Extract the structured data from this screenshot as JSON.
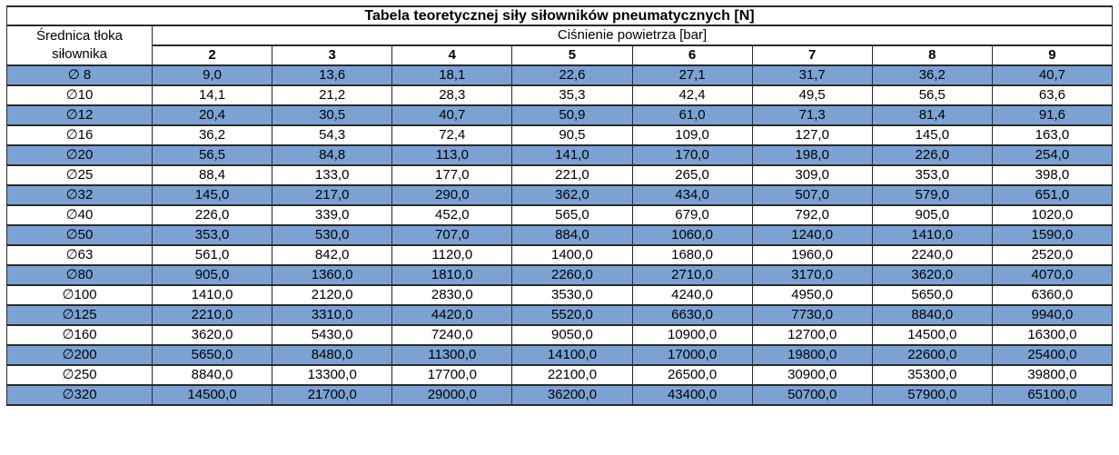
{
  "table": {
    "title": "Tabela teoretycznej siły siłowników pneumatycznych [N]",
    "row_header_line1": "Średnica tłoka",
    "row_header_line2": "siłownika",
    "col_group_header": "Ciśnienie powietrza [bar]",
    "pressures": [
      "2",
      "3",
      "4",
      "5",
      "6",
      "7",
      "8",
      "9"
    ],
    "rows": [
      {
        "diameter": "∅ 8",
        "values": [
          "9,0",
          "13,6",
          "18,1",
          "22,6",
          "27,1",
          "31,7",
          "36,2",
          "40,7"
        ]
      },
      {
        "diameter": "∅10",
        "values": [
          "14,1",
          "21,2",
          "28,3",
          "35,3",
          "42,4",
          "49,5",
          "56,5",
          "63,6"
        ]
      },
      {
        "diameter": "∅12",
        "values": [
          "20,4",
          "30,5",
          "40,7",
          "50,9",
          "61,0",
          "71,3",
          "81,4",
          "91,6"
        ]
      },
      {
        "diameter": "∅16",
        "values": [
          "36,2",
          "54,3",
          "72,4",
          "90,5",
          "109,0",
          "127,0",
          "145,0",
          "163,0"
        ]
      },
      {
        "diameter": "∅20",
        "values": [
          "56,5",
          "84,8",
          "113,0",
          "141,0",
          "170,0",
          "198,0",
          "226,0",
          "254,0"
        ]
      },
      {
        "diameter": "∅25",
        "values": [
          "88,4",
          "133,0",
          "177,0",
          "221,0",
          "265,0",
          "309,0",
          "353,0",
          "398,0"
        ]
      },
      {
        "diameter": "∅32",
        "values": [
          "145,0",
          "217,0",
          "290,0",
          "362,0",
          "434,0",
          "507,0",
          "579,0",
          "651,0"
        ]
      },
      {
        "diameter": "∅40",
        "values": [
          "226,0",
          "339,0",
          "452,0",
          "565,0",
          "679,0",
          "792,0",
          "905,0",
          "1020,0"
        ]
      },
      {
        "diameter": "∅50",
        "values": [
          "353,0",
          "530,0",
          "707,0",
          "884,0",
          "1060,0",
          "1240,0",
          "1410,0",
          "1590,0"
        ]
      },
      {
        "diameter": "∅63",
        "values": [
          "561,0",
          "842,0",
          "1120,0",
          "1400,0",
          "1680,0",
          "1960,0",
          "2240,0",
          "2520,0"
        ]
      },
      {
        "diameter": "∅80",
        "values": [
          "905,0",
          "1360,0",
          "1810,0",
          "2260,0",
          "2710,0",
          "3170,0",
          "3620,0",
          "4070,0"
        ]
      },
      {
        "diameter": "∅100",
        "values": [
          "1410,0",
          "2120,0",
          "2830,0",
          "3530,0",
          "4240,0",
          "4950,0",
          "5650,0",
          "6360,0"
        ]
      },
      {
        "diameter": "∅125",
        "values": [
          "2210,0",
          "3310,0",
          "4420,0",
          "5520,0",
          "6630,0",
          "7730,0",
          "8840,0",
          "9940,0"
        ]
      },
      {
        "diameter": "∅160",
        "values": [
          "3620,0",
          "5430,0",
          "7240,0",
          "9050,0",
          "10900,0",
          "12700,0",
          "14500,0",
          "16300,0"
        ]
      },
      {
        "diameter": "∅200",
        "values": [
          "5650,0",
          "8480,0",
          "11300,0",
          "14100,0",
          "17000,0",
          "19800,0",
          "22600,0",
          "25400,0"
        ]
      },
      {
        "diameter": "∅250",
        "values": [
          "8840,0",
          "13300,0",
          "17700,0",
          "22100,0",
          "26500,0",
          "30900,0",
          "35300,0",
          "39800,0"
        ]
      },
      {
        "diameter": "∅320",
        "values": [
          "14500,0",
          "21700,0",
          "29000,0",
          "36200,0",
          "43400,0",
          "50700,0",
          "57900,0",
          "65100,0"
        ]
      }
    ]
  },
  "colors": {
    "row_highlight": "#7CA2D4",
    "border": "#2B2B2B",
    "background": "#FFFFFF",
    "text": "#000000"
  },
  "chart_data": {
    "type": "table",
    "title": "Tabela teoretycznej siły siłowników pneumatycznych [N]",
    "xlabel": "Ciśnienie powietrza [bar]",
    "ylabel": "Średnica tłoka siłownika",
    "x": [
      2,
      3,
      4,
      5,
      6,
      7,
      8,
      9
    ],
    "series": [
      {
        "name": "∅ 8",
        "values": [
          9.0,
          13.6,
          18.1,
          22.6,
          27.1,
          31.7,
          36.2,
          40.7
        ]
      },
      {
        "name": "∅10",
        "values": [
          14.1,
          21.2,
          28.3,
          35.3,
          42.4,
          49.5,
          56.5,
          63.6
        ]
      },
      {
        "name": "∅12",
        "values": [
          20.4,
          30.5,
          40.7,
          50.9,
          61.0,
          71.3,
          81.4,
          91.6
        ]
      },
      {
        "name": "∅16",
        "values": [
          36.2,
          54.3,
          72.4,
          90.5,
          109.0,
          127.0,
          145.0,
          163.0
        ]
      },
      {
        "name": "∅20",
        "values": [
          56.5,
          84.8,
          113.0,
          141.0,
          170.0,
          198.0,
          226.0,
          254.0
        ]
      },
      {
        "name": "∅25",
        "values": [
          88.4,
          133.0,
          177.0,
          221.0,
          265.0,
          309.0,
          353.0,
          398.0
        ]
      },
      {
        "name": "∅32",
        "values": [
          145.0,
          217.0,
          290.0,
          362.0,
          434.0,
          507.0,
          579.0,
          651.0
        ]
      },
      {
        "name": "∅40",
        "values": [
          226.0,
          339.0,
          452.0,
          565.0,
          679.0,
          792.0,
          905.0,
          1020.0
        ]
      },
      {
        "name": "∅50",
        "values": [
          353.0,
          530.0,
          707.0,
          884.0,
          1060.0,
          1240.0,
          1410.0,
          1590.0
        ]
      },
      {
        "name": "∅63",
        "values": [
          561.0,
          842.0,
          1120.0,
          1400.0,
          1680.0,
          1960.0,
          2240.0,
          2520.0
        ]
      },
      {
        "name": "∅80",
        "values": [
          905.0,
          1360.0,
          1810.0,
          2260.0,
          2710.0,
          3170.0,
          3620.0,
          4070.0
        ]
      },
      {
        "name": "∅100",
        "values": [
          1410.0,
          2120.0,
          2830.0,
          3530.0,
          4240.0,
          4950.0,
          5650.0,
          6360.0
        ]
      },
      {
        "name": "∅125",
        "values": [
          2210.0,
          3310.0,
          4420.0,
          5520.0,
          6630.0,
          7730.0,
          8840.0,
          9940.0
        ]
      },
      {
        "name": "∅160",
        "values": [
          3620.0,
          5430.0,
          7240.0,
          9050.0,
          10900.0,
          12700.0,
          14500.0,
          16300.0
        ]
      },
      {
        "name": "∅200",
        "values": [
          5650.0,
          8480.0,
          11300.0,
          14100.0,
          17000.0,
          19800.0,
          22600.0,
          25400.0
        ]
      },
      {
        "name": "∅250",
        "values": [
          8840.0,
          13300.0,
          17700.0,
          22100.0,
          26500.0,
          30900.0,
          35300.0,
          39800.0
        ]
      },
      {
        "name": "∅320",
        "values": [
          14500.0,
          21700.0,
          29000.0,
          36200.0,
          43400.0,
          50700.0,
          57900.0,
          65100.0
        ]
      }
    ]
  }
}
